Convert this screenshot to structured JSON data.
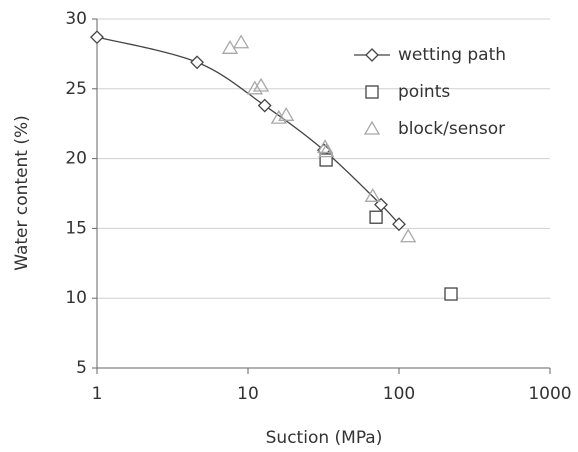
{
  "chart_data": {
    "type": "scatter",
    "x_label": "Suction (MPa)",
    "y_label": "Water content (%)",
    "xscale": "log",
    "xlim": [
      1,
      1000
    ],
    "xticks": [
      1,
      10,
      100,
      1000
    ],
    "ylim": [
      5,
      30
    ],
    "yticks": [
      5,
      10,
      15,
      20,
      25,
      30
    ],
    "grid": true,
    "legend": "upper right",
    "series": [
      {
        "name": "wetting path",
        "color": "#444444",
        "marker": "diamond",
        "line": true,
        "x": [
          1,
          4.6,
          12.9,
          31.8,
          76,
          100
        ],
        "values": [
          28.7,
          26.9,
          23.8,
          20.6,
          16.7,
          15.3
        ]
      },
      {
        "name": "points",
        "color": "#444444",
        "marker": "square",
        "line": false,
        "x": [
          32.9,
          70.5,
          221
        ],
        "values": [
          19.9,
          15.8,
          10.3
        ]
      },
      {
        "name": "block/sensor",
        "color": "#a8a8a8",
        "marker": "triangle",
        "line": false,
        "x": [
          7.6,
          9.0,
          11.1,
          12.2,
          16.0,
          17.9,
          32.4,
          33.0,
          67,
          115
        ],
        "values": [
          27.9,
          28.3,
          25.0,
          25.2,
          22.9,
          23.1,
          20.8,
          20.5,
          17.3,
          14.4
        ]
      }
    ]
  }
}
